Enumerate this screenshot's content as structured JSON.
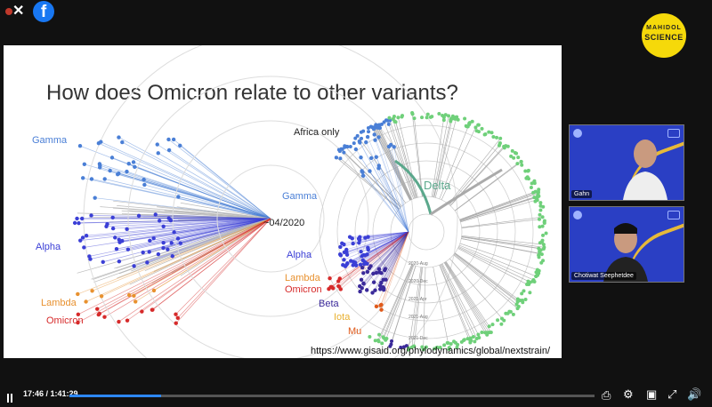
{
  "slide": {
    "title": "How does Omicron relate to other variants?",
    "africa_only": "Africa only",
    "date_label": "~04/2020",
    "left_labels": {
      "gamma": "Gamma",
      "alpha": "Alpha",
      "lambda": "Lambda",
      "omicron": "Omicron"
    },
    "right_labels": {
      "gamma": "Gamma",
      "alpha": "Alpha",
      "lambda": "Lambda",
      "omicron": "Omicron",
      "beta": "Beta",
      "iota": "Iota",
      "mu": "Mu",
      "delta": "Delta"
    },
    "time_ticks": [
      "2020-Aug",
      "2020-Dec",
      "2021-Apr",
      "2021-Aug",
      "2021-Dec"
    ],
    "url": "https://www.gisaid.org/phylodynamics/global/nextstrain/",
    "colors": {
      "gamma": "#4a7fd6",
      "alpha": "#3b3fd6",
      "lambda": "#e8912f",
      "omicron": "#d62a2a",
      "beta": "#3b2a9a",
      "iota": "#e8b02f",
      "mu": "#e05a1a",
      "delta": "#5ba88c",
      "delta_tips": "#6fd07a"
    }
  },
  "branding": {
    "logo_line1": "MAHIDOL",
    "logo_line2": "SCIENCE",
    "facebook_icon": "facebook-icon"
  },
  "participants": [
    {
      "name": "Gahn"
    },
    {
      "name": "Chotiwat Seephetdee"
    }
  ],
  "player": {
    "time": "17:46 / 1:41:29",
    "progress_fraction": 0.175
  }
}
